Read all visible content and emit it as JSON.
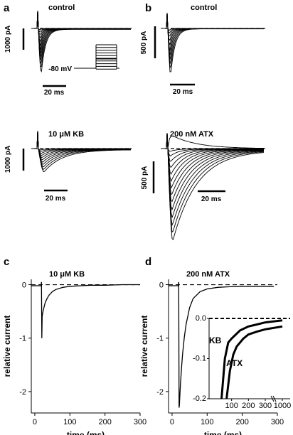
{
  "figure": {
    "colors": {
      "trace": "#000000",
      "background": "#ffffff"
    },
    "panel_labels": {
      "a": "a",
      "b": "b",
      "c": "c",
      "d": "d"
    },
    "panel_a": {
      "title_top": "control",
      "title_bottom": "10 μM KB",
      "scale_current_top": "1000 pA",
      "scale_current_bottom": "1000 pA",
      "scale_time": "20 ms",
      "protocol_label": "-80 mV"
    },
    "panel_b": {
      "title_top": "control",
      "title_bottom": "200 nM ATX",
      "scale_current_top": "500 pA",
      "scale_current_bottom": "500 pA",
      "scale_time": "20 ms"
    }
  },
  "chart_data": [
    {
      "type": "line",
      "panel": "c",
      "title": "10 μM KB",
      "xlabel": "time (ms)",
      "ylabel": "relative current",
      "xlim": [
        -10,
        300
      ],
      "ylim": [
        -2.4,
        0.1
      ],
      "xticks": [
        0,
        100,
        200,
        300
      ],
      "yticks": [
        0,
        -1,
        -2
      ],
      "baseline": 0,
      "series": [
        {
          "x": [
            -10,
            18,
            19,
            20,
            21,
            22,
            24,
            27,
            30,
            35,
            40,
            50,
            60,
            80,
            100,
            130,
            160,
            200,
            250,
            300
          ],
          "y": [
            -0.02,
            -0.02,
            0.05,
            -1.0,
            -0.6,
            -0.55,
            -0.48,
            -0.4,
            -0.33,
            -0.26,
            -0.2,
            -0.13,
            -0.09,
            -0.05,
            -0.03,
            -0.02,
            -0.01,
            -0.01,
            0,
            0
          ]
        }
      ]
    },
    {
      "type": "line",
      "panel": "d",
      "title": "200 nM ATX",
      "xlabel": "time (ms)",
      "ylabel": "relative current",
      "xlim": [
        -10,
        300
      ],
      "ylim": [
        -2.4,
        0.1
      ],
      "xticks": [
        0,
        100,
        200,
        300
      ],
      "yticks": [
        0,
        -1,
        -2
      ],
      "baseline": 0,
      "series": [
        {
          "x": [
            -10,
            18,
            19,
            20,
            21,
            22,
            24,
            27,
            30,
            35,
            40,
            50,
            60,
            80,
            100,
            130,
            160,
            200,
            250,
            290
          ],
          "y": [
            -0.02,
            -0.02,
            0.05,
            -2.3,
            -2.25,
            -2.1,
            -1.85,
            -1.55,
            -1.3,
            -0.98,
            -0.74,
            -0.43,
            -0.26,
            -0.13,
            -0.08,
            -0.05,
            -0.04,
            -0.03,
            -0.03,
            -0.03
          ]
        }
      ],
      "inset": {
        "xticks": [
          "100",
          "200",
          "300",
          "1000"
        ],
        "yticks": [
          "0.0",
          "-0.1",
          "-0.2"
        ],
        "ylim": [
          -0.2,
          0.0
        ],
        "series": [
          {
            "name": "KB",
            "x": [
              40,
              60,
              80,
              100,
              150,
              200,
              250,
              300,
              1000
            ],
            "y": [
              -0.2,
              -0.1,
              -0.06,
              -0.05,
              -0.03,
              -0.02,
              -0.015,
              -0.01,
              -0.005
            ]
          },
          {
            "name": "ATX",
            "x": [
              70,
              90,
              110,
              130,
              170,
              200,
              250,
              300,
              1000
            ],
            "y": [
              -0.2,
              -0.13,
              -0.09,
              -0.07,
              -0.05,
              -0.04,
              -0.033,
              -0.027,
              -0.02
            ]
          }
        ]
      }
    }
  ]
}
